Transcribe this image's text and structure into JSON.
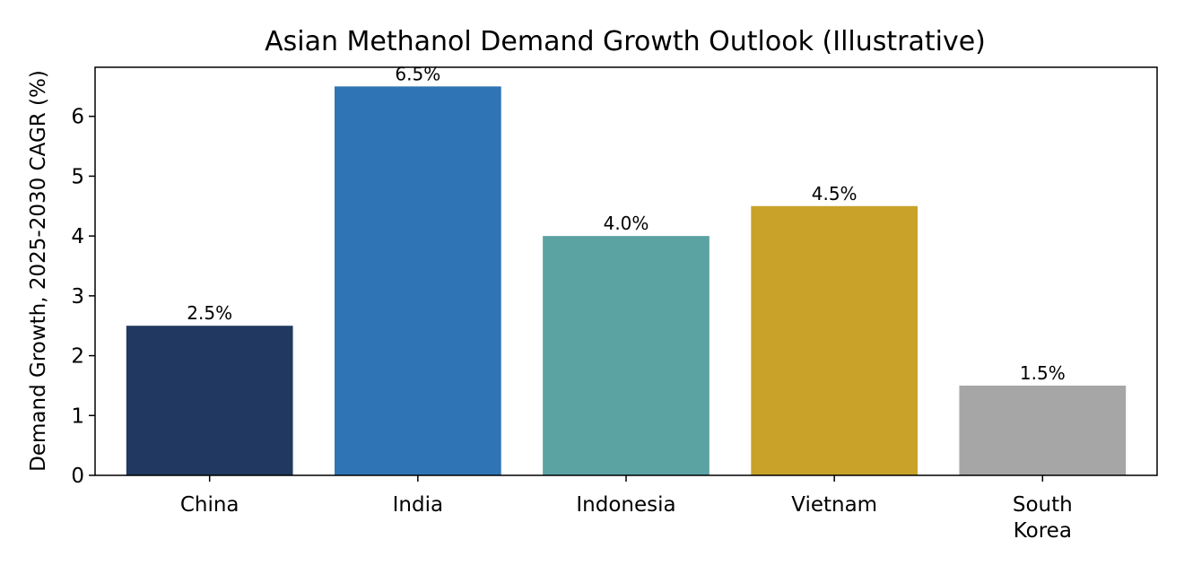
{
  "chart_data": {
    "type": "bar",
    "title": "Asian Methanol Demand Growth Outlook (Illustrative)",
    "xlabel": "",
    "ylabel": "Demand Growth, 2025-2030 CAGR (%)",
    "categories": [
      [
        "China"
      ],
      [
        "India"
      ],
      [
        "Indonesia"
      ],
      [
        "Vietnam"
      ],
      [
        "South",
        "Korea"
      ]
    ],
    "values": [
      2.5,
      6.5,
      4.0,
      4.5,
      1.5
    ],
    "value_labels": [
      "2.5%",
      "6.5%",
      "4.0%",
      "4.5%",
      "1.5%"
    ],
    "colors": [
      "#213961",
      "#2f75b5",
      "#5ba3a2",
      "#c9a22a",
      "#a6a6a6"
    ],
    "ylim": [
      0,
      6.82
    ],
    "yticks": [
      0,
      1,
      2,
      3,
      4,
      5,
      6
    ],
    "grid": false,
    "legend": "none"
  }
}
